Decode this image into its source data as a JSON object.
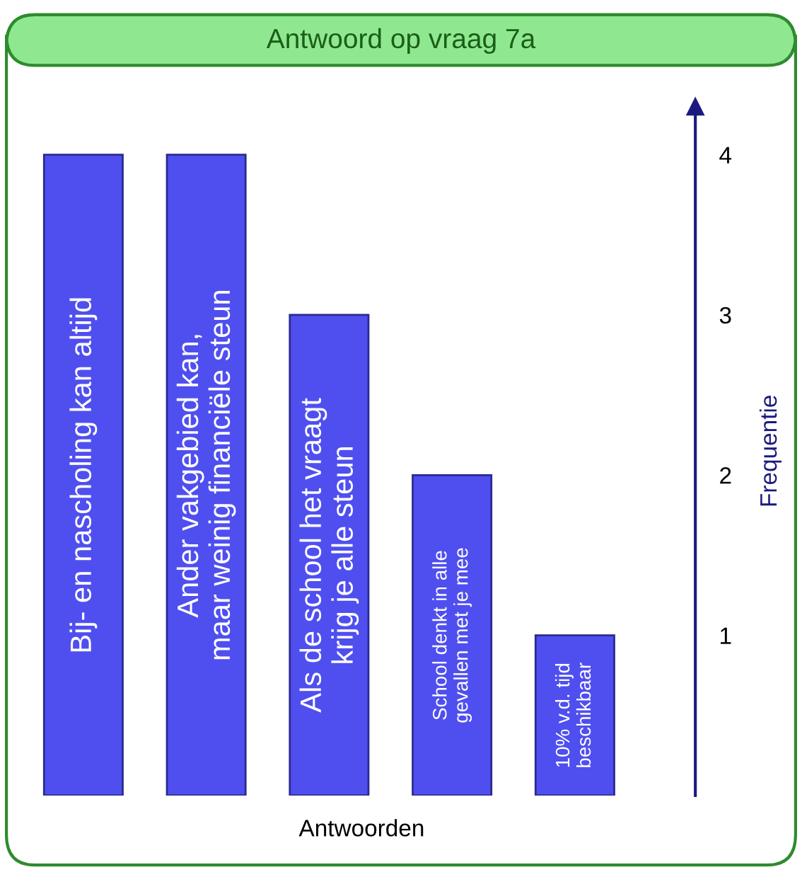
{
  "chart_data": {
    "type": "bar",
    "title": "Antwoord op vraag 7a",
    "xlabel": "Antwoorden",
    "ylabel": "Frequentie",
    "categories": [
      "Bij- en nascholing kan altijd",
      "Ander vakgebied kan,\nmaar weinig financiële steun",
      "Als de school het vraagt\nkrijg je alle steun",
      "School denkt in alle\ngevallen met je mee",
      "10% v.d. tijd\nbeschikbaar"
    ],
    "values": [
      4,
      4,
      3,
      2,
      1
    ],
    "color": "#4f4ff0",
    "ylim": [
      0,
      4.3
    ],
    "yticks": [
      1,
      2,
      3,
      4
    ],
    "grid": false,
    "legend": false
  }
}
